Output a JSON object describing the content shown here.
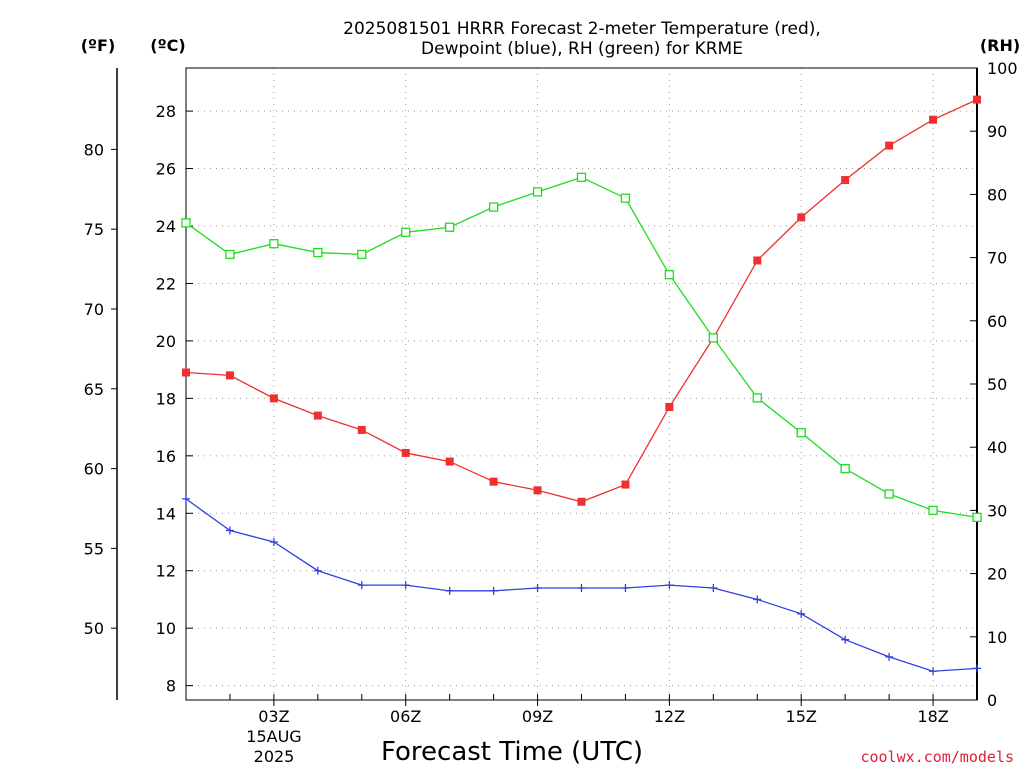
{
  "chart_data": {
    "type": "line",
    "title_lines": [
      "2025081501 HRRR Forecast 2-meter Temperature (red),",
      "Dewpoint (blue), RH (green) for KRME"
    ],
    "xlabel": "Forecast Time (UTC)",
    "x_hours": [
      1,
      2,
      3,
      4,
      5,
      6,
      7,
      8,
      9,
      10,
      11,
      12,
      13,
      14,
      15,
      16,
      17,
      18,
      19
    ],
    "x_ticks": [
      {
        "hour": 3,
        "label": "03Z"
      },
      {
        "hour": 6,
        "label": "06Z"
      },
      {
        "hour": 9,
        "label": "09Z"
      },
      {
        "hour": 12,
        "label": "12Z"
      },
      {
        "hour": 15,
        "label": "15Z"
      },
      {
        "hour": 18,
        "label": "18Z"
      }
    ],
    "date_label": [
      "15AUG",
      "2025"
    ],
    "xlim": [
      1,
      19
    ],
    "axes": {
      "celsius": {
        "unit_label": "(ºC)",
        "range": [
          7.5,
          29.5
        ],
        "ticks": [
          8,
          10,
          12,
          14,
          16,
          18,
          20,
          22,
          24,
          26,
          28
        ]
      },
      "fahrenheit": {
        "unit_label": "(ºF)",
        "ticks": [
          50,
          55,
          60,
          65,
          70,
          75,
          80
        ]
      },
      "rh": {
        "unit_label": "(RH)",
        "range": [
          0,
          100
        ],
        "ticks": [
          0,
          10,
          20,
          30,
          40,
          50,
          60,
          70,
          80,
          90,
          100
        ]
      }
    },
    "grid": true,
    "series": [
      {
        "key": "temperature",
        "axis": "celsius",
        "color": "#ee3030",
        "marker": "filled-square",
        "values": [
          18.9,
          18.8,
          18.0,
          17.4,
          16.9,
          16.1,
          15.8,
          15.1,
          14.8,
          14.4,
          15.0,
          17.7,
          20.1,
          22.8,
          24.3,
          25.6,
          26.8,
          27.7,
          28.4
        ]
      },
      {
        "key": "dewpoint",
        "axis": "celsius",
        "color": "#3040e0",
        "marker": "plus",
        "values": [
          14.5,
          13.4,
          13.0,
          12.0,
          11.5,
          11.5,
          11.3,
          11.3,
          11.4,
          11.4,
          11.4,
          11.5,
          11.4,
          11.0,
          10.5,
          9.6,
          9.0,
          8.5,
          8.6
        ]
      },
      {
        "key": "rh",
        "axis": "rh",
        "color": "#20dd20",
        "marker": "open-square",
        "values": [
          75.5,
          70.5,
          72.2,
          70.8,
          70.5,
          74.0,
          74.8,
          78.0,
          80.4,
          82.7,
          79.4,
          67.3,
          57.3,
          47.8,
          42.3,
          36.6,
          32.6,
          30.0,
          28.9
        ]
      }
    ],
    "credit": "coolwx.com/models"
  }
}
